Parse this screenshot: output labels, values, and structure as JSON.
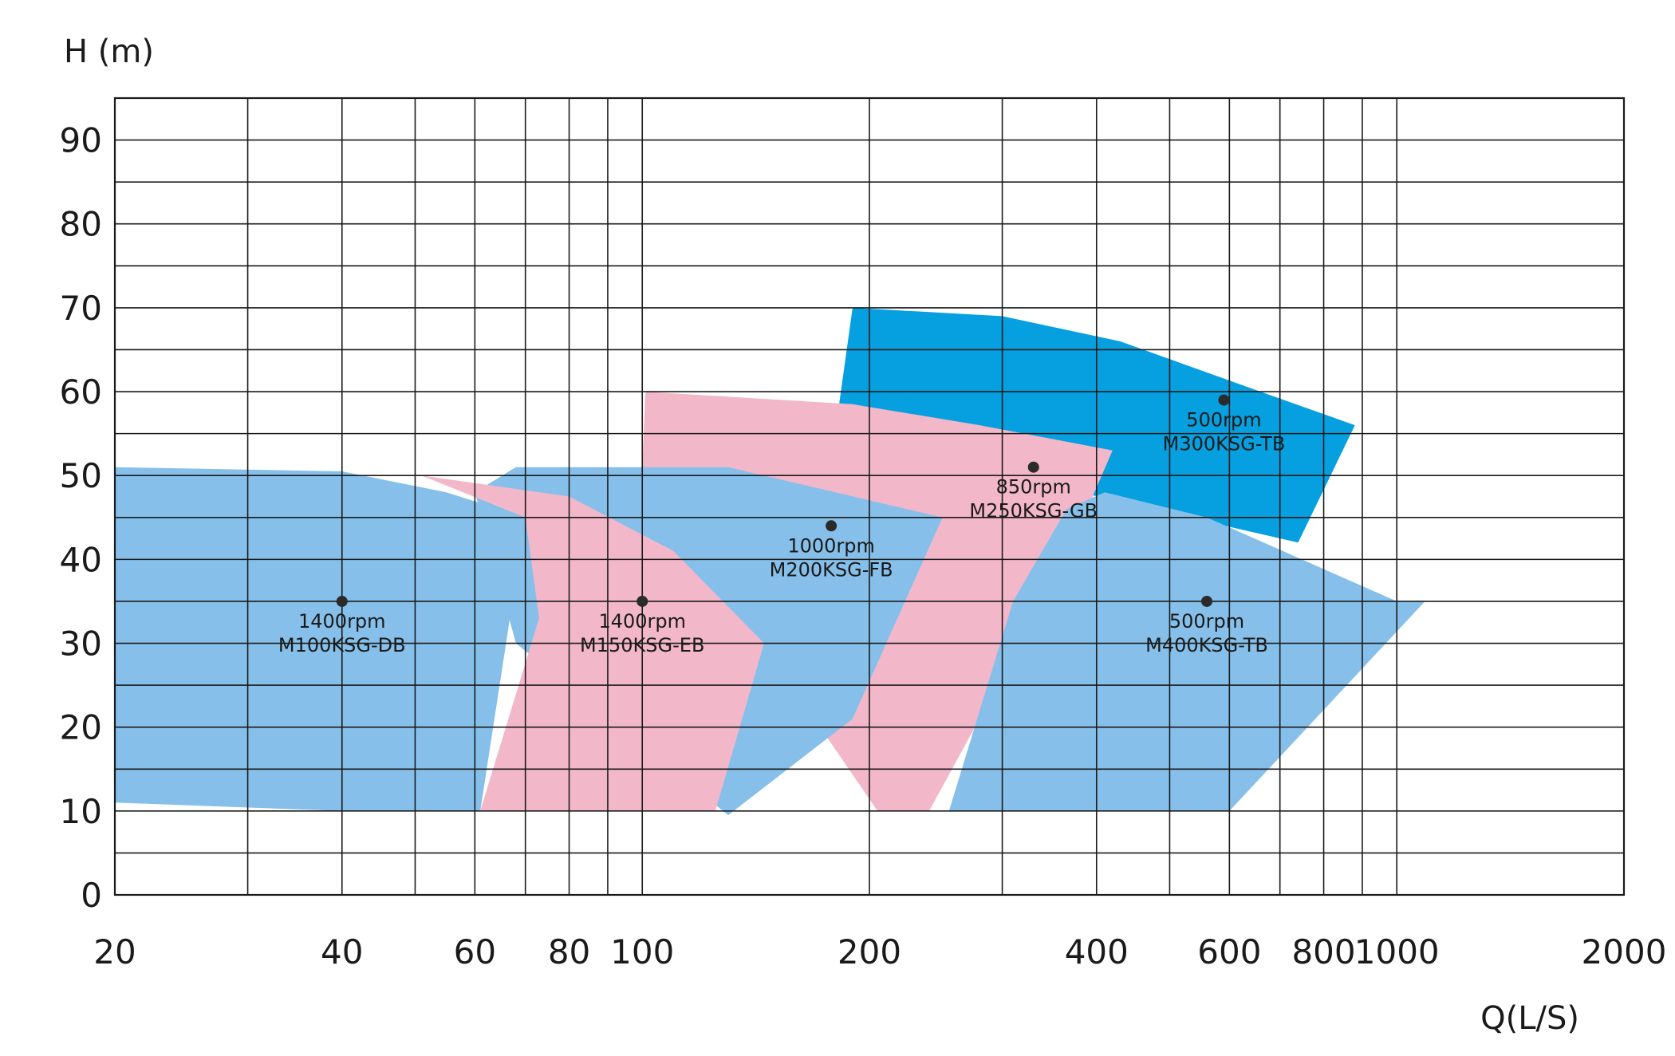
{
  "chart_data": {
    "type": "area",
    "xlabel": "Q(L/S)",
    "ylabel": "H (m)",
    "xscale": "log",
    "xlim": [
      20,
      2000
    ],
    "ylim": [
      0,
      95
    ],
    "x_ticks": [
      20,
      40,
      60,
      80,
      100,
      200,
      400,
      600,
      800,
      1000,
      2000
    ],
    "x_tick_labels": [
      "20",
      "40",
      "60",
      "80",
      "100",
      "200",
      "400",
      "600",
      "800",
      "1000",
      "2000"
    ],
    "y_ticks": [
      0,
      10,
      20,
      30,
      40,
      50,
      60,
      70,
      80,
      90
    ],
    "y_tick_labels": [
      "0",
      "10",
      "20",
      "30",
      "40",
      "50",
      "60",
      "70",
      "80",
      "90"
    ],
    "x_grid": [
      20,
      30,
      40,
      50,
      60,
      70,
      80,
      90,
      100,
      200,
      300,
      400,
      500,
      600,
      700,
      800,
      900,
      1000,
      2000
    ],
    "y_grid": [
      0,
      5,
      10,
      15,
      20,
      25,
      30,
      35,
      40,
      45,
      50,
      55,
      60,
      65,
      70,
      75,
      80,
      85,
      90,
      95
    ],
    "grid": true,
    "regions": [
      {
        "speed": "500rpm",
        "model": "M300KSG-TB",
        "color": "#06a0e0",
        "point": [
          590,
          59
        ],
        "outline": [
          [
            182,
            58
          ],
          [
            190,
            70
          ],
          [
            300,
            69
          ],
          [
            430,
            66
          ],
          [
            660,
            60
          ],
          [
            880,
            56
          ],
          [
            740,
            42
          ],
          [
            380,
            48
          ]
        ]
      },
      {
        "speed": "850rpm",
        "model": "M250KSG-GB",
        "color": "#f3b7ca",
        "point": [
          330,
          51
        ],
        "outline": [
          [
            100,
            51
          ],
          [
            101,
            60
          ],
          [
            190,
            58.5
          ],
          [
            280,
            56
          ],
          [
            420,
            53
          ],
          [
            360,
            39
          ],
          [
            240,
            10
          ],
          [
            205,
            10
          ]
        ]
      },
      {
        "speed": "500rpm",
        "model": "M400KSG-TB",
        "color": "#86c0ea",
        "point": [
          560,
          35
        ],
        "outline": [
          [
            365,
            46
          ],
          [
            410,
            48
          ],
          [
            560,
            45
          ],
          [
            1000,
            35
          ],
          [
            1090,
            35
          ],
          [
            600,
            10
          ],
          [
            255,
            10
          ],
          [
            310,
            35
          ]
        ]
      },
      {
        "speed": "1000rpm",
        "model": "M200KSG-FB",
        "color": "#86c0ea",
        "point": [
          178,
          44
        ],
        "outline": [
          [
            68,
            51
          ],
          [
            130,
            51
          ],
          [
            250,
            45
          ],
          [
            190,
            21
          ],
          [
            130,
            9.5
          ],
          [
            68,
            30
          ],
          [
            60,
            48
          ]
        ]
      },
      {
        "speed": "1400rpm",
        "model": "M150KSG-EB",
        "color": "#f3b7ca",
        "point": [
          100,
          35
        ],
        "outline": [
          [
            51,
            50
          ],
          [
            80,
            47.5
          ],
          [
            110,
            41
          ],
          [
            145,
            30
          ],
          [
            125,
            10
          ],
          [
            61,
            10
          ],
          [
            73,
            33
          ],
          [
            70,
            45
          ]
        ]
      },
      {
        "speed": "1400rpm",
        "model": "M100KSG-DB",
        "color": "#86c0ea",
        "point": [
          40,
          35
        ],
        "outline": [
          [
            20,
            51
          ],
          [
            40,
            50.5
          ],
          [
            55,
            48
          ],
          [
            70,
            45
          ],
          [
            61,
            10
          ],
          [
            40,
            10
          ],
          [
            20,
            11
          ]
        ]
      }
    ]
  }
}
